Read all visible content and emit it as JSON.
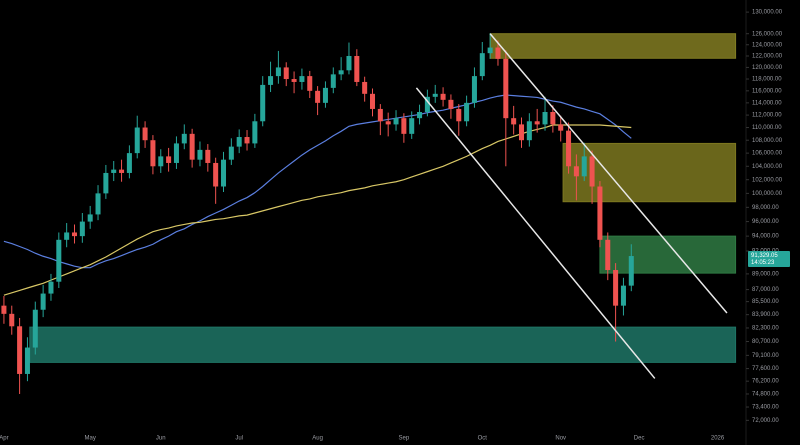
{
  "chart_data": {
    "type": "candlestick",
    "log": true,
    "ylim": [
      71000,
      132300
    ],
    "yticks": [
      {
        "value": 130000,
        "label": "130,000.00"
      },
      {
        "value": 126000,
        "label": "126,000.00"
      },
      {
        "value": 124000,
        "label": "124,000.00"
      },
      {
        "value": 122000,
        "label": "122,000.00"
      },
      {
        "value": 120000,
        "label": "120,000.00"
      },
      {
        "value": 118000,
        "label": "118,000.00"
      },
      {
        "value": 116000,
        "label": "116,000.00"
      },
      {
        "value": 114000,
        "label": "114,000.00"
      },
      {
        "value": 112000,
        "label": "112,000.00"
      },
      {
        "value": 110000,
        "label": "110,000.00"
      },
      {
        "value": 108000,
        "label": "108,000.00"
      },
      {
        "value": 106000,
        "label": "106,000.00"
      },
      {
        "value": 104000,
        "label": "104,000.00"
      },
      {
        "value": 102000,
        "label": "102,000.00"
      },
      {
        "value": 100000,
        "label": "100,000.00"
      },
      {
        "value": 98000,
        "label": "98,000.00"
      },
      {
        "value": 96000,
        "label": "96,000.00"
      },
      {
        "value": 94000,
        "label": "94,000.00"
      },
      {
        "value": 92000,
        "label": "92,000.00"
      },
      {
        "value": 89000,
        "label": "89,000.00"
      },
      {
        "value": 87000,
        "label": "87,000.00"
      },
      {
        "value": 85500,
        "label": "85,500.00"
      },
      {
        "value": 83900,
        "label": "83,900.00"
      },
      {
        "value": 82300,
        "label": "82,300.00"
      },
      {
        "value": 80700,
        "label": "80,700.00"
      },
      {
        "value": 79100,
        "label": "79,100.00"
      },
      {
        "value": 77600,
        "label": "77,600.00"
      },
      {
        "value": 76200,
        "label": "76,200.00"
      },
      {
        "value": 74800,
        "label": "74,800.00"
      },
      {
        "value": 73400,
        "label": "73,400.00"
      },
      {
        "value": 72000,
        "label": "72,000.00"
      }
    ],
    "categories": [
      "Apr",
      null,
      null,
      null,
      null,
      null,
      null,
      null,
      null,
      null,
      null,
      "May",
      null,
      null,
      null,
      null,
      null,
      null,
      null,
      null,
      "Jun",
      null,
      null,
      null,
      null,
      null,
      null,
      null,
      null,
      null,
      "Jul",
      null,
      null,
      null,
      null,
      null,
      null,
      null,
      null,
      null,
      "Aug",
      null,
      null,
      null,
      null,
      null,
      null,
      null,
      null,
      null,
      null,
      "Sep",
      null,
      null,
      null,
      null,
      null,
      null,
      null,
      null,
      null,
      "Oct",
      null,
      null,
      null,
      null,
      null,
      null,
      null,
      null,
      null,
      "Nov",
      null,
      null,
      null,
      null,
      null,
      null,
      null,
      null,
      null,
      "Dec",
      null,
      null,
      null,
      null,
      null,
      null,
      null,
      null,
      null,
      "2026",
      null,
      null,
      null
    ],
    "open": [
      85000,
      84000,
      82500,
      77000,
      80000,
      84500,
      86500,
      88000,
      93500,
      94500,
      94000,
      96000,
      97000,
      100000,
      103000,
      103500,
      103000,
      106000,
      110000,
      108000,
      104000,
      105500,
      104500,
      107500,
      109000,
      105000,
      106500,
      104500,
      101000,
      105000,
      107000,
      108500,
      107500,
      111000,
      117000,
      118500,
      120000,
      118000,
      117500,
      118500,
      116000,
      114000,
      116500,
      118800,
      119500,
      122000,
      117500,
      115500,
      113000,
      111000,
      110500,
      111500,
      109000,
      111500,
      112500,
      115000,
      115500,
      114500,
      113000,
      111000,
      114000,
      118500,
      122500,
      123500,
      121500,
      111500,
      110500,
      108000,
      111000,
      110500,
      112500,
      110500,
      109500,
      104000,
      102500,
      105500,
      101000,
      93500,
      89500,
      85000,
      87500,
      null,
      null,
      null,
      null,
      null,
      null,
      null,
      null,
      null,
      null,
      null,
      null,
      null,
      null
    ],
    "high": [
      86200,
      85000,
      83500,
      81200,
      85500,
      87600,
      89000,
      94500,
      95800,
      95600,
      97200,
      98200,
      101200,
      104200,
      104800,
      105000,
      107200,
      111900,
      111000,
      108800,
      106600,
      106800,
      108600,
      110500,
      109800,
      107800,
      107400,
      105300,
      106200,
      108300,
      109700,
      109600,
      112200,
      118500,
      121000,
      122900,
      120900,
      119300,
      119800,
      119400,
      116800,
      117600,
      120000,
      121800,
      124400,
      123200,
      118400,
      116400,
      113800,
      112400,
      112800,
      112300,
      112600,
      113700,
      116200,
      117000,
      116600,
      115400,
      113800,
      115200,
      120000,
      124500,
      126100,
      124800,
      123000,
      113500,
      111600,
      112300,
      113000,
      115000,
      113600,
      111900,
      110800,
      105800,
      107600,
      106400,
      101800,
      94500,
      90400,
      88500,
      92900,
      null,
      null,
      null,
      null,
      null,
      null,
      null,
      null,
      null,
      null,
      null,
      null,
      null,
      null
    ],
    "low": [
      82800,
      81500,
      74800,
      76200,
      79200,
      83600,
      85600,
      87200,
      92500,
      93000,
      93100,
      95000,
      96200,
      99200,
      101800,
      101700,
      102200,
      105200,
      106800,
      102800,
      103000,
      103200,
      103600,
      106600,
      103800,
      104000,
      103200,
      98500,
      100200,
      104200,
      106000,
      106400,
      106800,
      110200,
      115800,
      117200,
      116800,
      115600,
      116200,
      114800,
      112000,
      113200,
      115600,
      117800,
      118800,
      116800,
      114200,
      111800,
      108800,
      108600,
      109500,
      107600,
      108200,
      110500,
      111800,
      114000,
      113400,
      111400,
      108700,
      110200,
      113200,
      117800,
      121500,
      120300,
      104000,
      108900,
      106800,
      107000,
      109200,
      109500,
      109200,
      107800,
      102900,
      99000,
      101800,
      98500,
      92500,
      88200,
      80700,
      83800,
      86800,
      null,
      null,
      null,
      null,
      null,
      null,
      null,
      null,
      null,
      null,
      null,
      null,
      null,
      null
    ],
    "close": [
      84000,
      82500,
      77000,
      80000,
      84500,
      86500,
      88000,
      93500,
      94500,
      94000,
      96000,
      97000,
      100000,
      103000,
      103500,
      103000,
      106000,
      110000,
      108000,
      104000,
      105500,
      104500,
      107500,
      109000,
      105000,
      106500,
      104500,
      101000,
      105000,
      107000,
      108500,
      107500,
      111000,
      117000,
      118500,
      120000,
      118000,
      117500,
      118500,
      116000,
      114000,
      116500,
      118800,
      119500,
      122000,
      117500,
      115500,
      113000,
      111000,
      110500,
      111500,
      109000,
      111500,
      112500,
      115000,
      115500,
      114500,
      113000,
      111000,
      114000,
      118500,
      122500,
      123500,
      121500,
      111500,
      110500,
      108000,
      111000,
      110500,
      112500,
      110500,
      109500,
      104000,
      102500,
      105500,
      101000,
      93500,
      89500,
      85000,
      87500,
      91329.05,
      null,
      null,
      null,
      null,
      null,
      null,
      null,
      null,
      null,
      null,
      null,
      null,
      null,
      null
    ],
    "up_color": "#26a69a",
    "down_color": "#ef5350",
    "moving_averages": [
      {
        "color": "#5b7fe0",
        "values": [
          93300,
          93000,
          92600,
          92200,
          91700,
          91300,
          91000,
          90600,
          90300,
          90000,
          89800,
          89800,
          90300,
          90700,
          91000,
          91400,
          91800,
          92200,
          92500,
          92900,
          93500,
          94000,
          94600,
          95000,
          95600,
          96100,
          96700,
          97200,
          97700,
          98300,
          98900,
          99400,
          100100,
          101000,
          102000,
          103000,
          103900,
          104800,
          105700,
          106500,
          107200,
          107900,
          108700,
          109400,
          110200,
          110500,
          110700,
          110900,
          111100,
          111300,
          111500,
          111700,
          111900,
          112100,
          112400,
          112600,
          112800,
          113100,
          113400,
          113700,
          114100,
          114400,
          114800,
          115100,
          115300,
          115200,
          115100,
          115000,
          114900,
          114600,
          114300,
          114100,
          113700,
          113300,
          113000,
          112600,
          112200,
          111300,
          110400,
          109300,
          108300,
          null,
          null,
          null,
          null,
          null,
          null,
          null,
          null,
          null,
          null,
          null,
          null,
          null,
          null
        ]
      },
      {
        "color": "#d8c766",
        "values": [
          86300,
          86600,
          86900,
          87200,
          87500,
          87800,
          88200,
          88600,
          89000,
          89400,
          89800,
          90200,
          90700,
          91200,
          91800,
          92400,
          93000,
          93600,
          94100,
          94600,
          94900,
          95100,
          95400,
          95600,
          95800,
          95900,
          96100,
          96300,
          96400,
          96600,
          96800,
          96900,
          97200,
          97500,
          97800,
          98100,
          98400,
          98700,
          99000,
          99200,
          99500,
          99700,
          99900,
          100100,
          100400,
          100600,
          100800,
          101100,
          101300,
          101500,
          101700,
          102000,
          102400,
          102800,
          103200,
          103600,
          104000,
          104500,
          105000,
          105500,
          106100,
          106700,
          107200,
          107800,
          108200,
          108600,
          109000,
          109400,
          109700,
          110000,
          110400,
          110400,
          110400,
          110400,
          110400,
          110400,
          110400,
          110300,
          110200,
          110100,
          110000,
          null,
          null,
          null,
          null,
          null,
          null,
          null,
          null,
          null,
          null,
          null,
          null,
          null,
          null
        ]
      }
    ],
    "zones": [
      {
        "color": "#827d22",
        "x": [
          62.0,
          93.3
        ],
        "y": [
          121600,
          126000
        ]
      },
      {
        "color": "#7d7820",
        "x": [
          71.3,
          93.3
        ],
        "y": [
          98800,
          107500
        ]
      },
      {
        "color": "#2f7a43",
        "x": [
          76.0,
          93.3
        ],
        "y": [
          89100,
          94000
        ]
      },
      {
        "color": "#1f7566",
        "x": [
          3.3,
          93.3
        ],
        "y": [
          78300,
          82400
        ]
      }
    ],
    "trendlines": [
      {
        "color": "#e8e8e8",
        "x": [
          52.6,
          83.0
        ],
        "y": [
          116500,
          76500
        ]
      },
      {
        "color": "#e8e8e8",
        "x": [
          62.0,
          92.2
        ],
        "y": [
          126000,
          84100
        ]
      }
    ],
    "last_price": {
      "value": 91329.05,
      "label": "91,329.05"
    },
    "countdown": "14:05:23"
  }
}
